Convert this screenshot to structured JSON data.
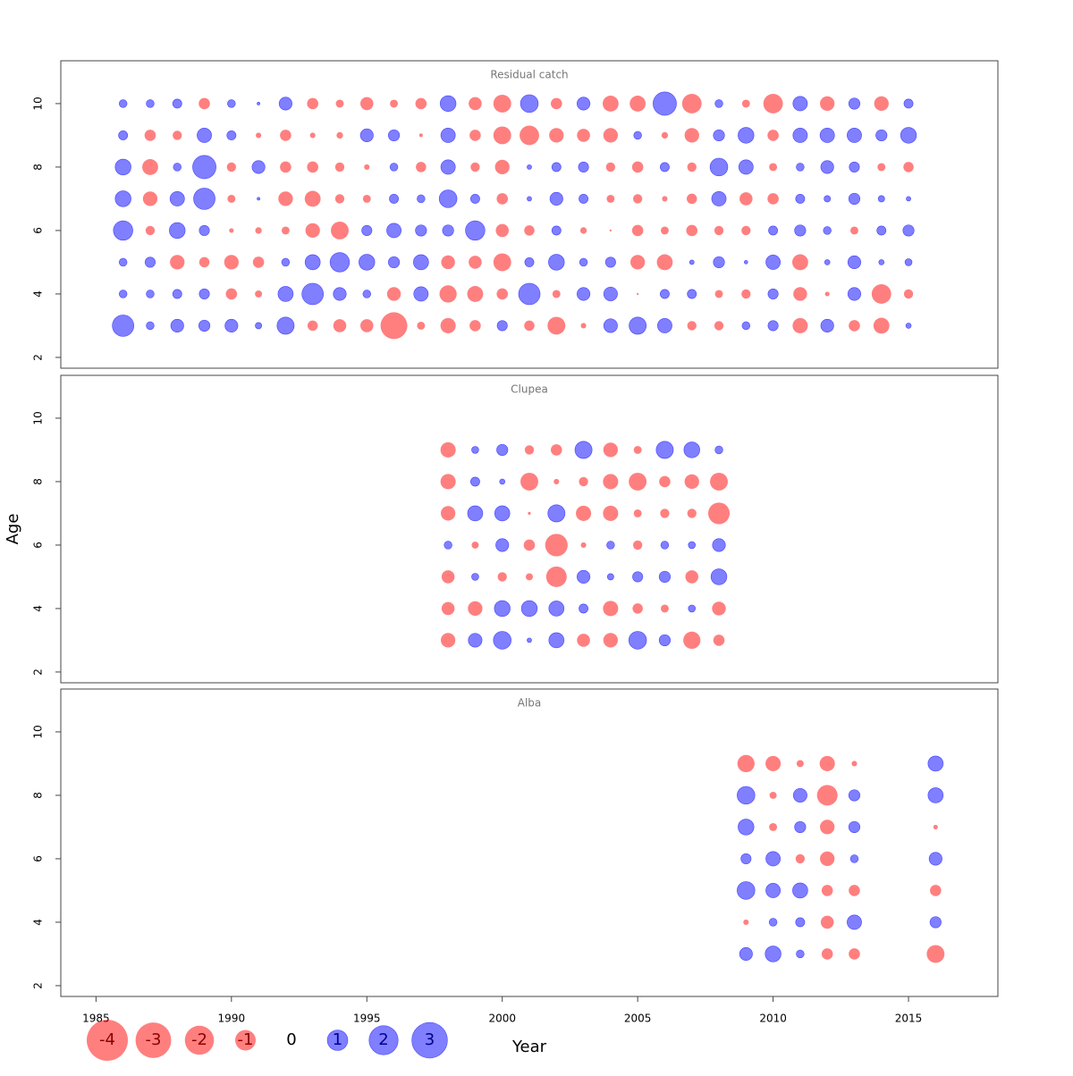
{
  "chart_data": [
    {
      "type": "bubble",
      "title": "Residual catch",
      "x": [
        1986,
        1987,
        1988,
        1989,
        1990,
        1991,
        1992,
        1993,
        1994,
        1995,
        1996,
        1997,
        1998,
        1999,
        2000,
        2001,
        2002,
        2003,
        2004,
        2005,
        2006,
        2007,
        2008,
        2009,
        2010,
        2011,
        2012,
        2013,
        2014,
        2015
      ],
      "y": [
        10,
        9,
        8,
        7,
        6,
        5,
        4,
        3
      ],
      "values": [
        [
          0.15,
          0.15,
          0.2,
          -0.3,
          0.15,
          0.02,
          0.4,
          -0.3,
          -0.15,
          -0.4,
          -0.15,
          -0.3,
          0.6,
          -0.4,
          -0.75,
          0.75,
          -0.3,
          0.4,
          -0.6,
          -0.6,
          1.3,
          -0.9,
          0.15,
          -0.15,
          -0.9,
          0.5,
          -0.5,
          0.3,
          -0.5,
          0.2
        ],
        [
          0.2,
          -0.3,
          -0.2,
          0.5,
          0.2,
          -0.07,
          -0.3,
          -0.07,
          -0.1,
          0.4,
          0.3,
          -0.03,
          0.5,
          -0.3,
          -0.75,
          -0.9,
          -0.5,
          -0.4,
          -0.5,
          0.15,
          -0.1,
          -0.5,
          0.3,
          0.6,
          -0.3,
          0.5,
          0.5,
          0.5,
          0.3,
          0.6
        ],
        [
          0.6,
          -0.6,
          0.15,
          1.3,
          -0.2,
          0.4,
          -0.3,
          -0.3,
          -0.2,
          -0.07,
          0.15,
          -0.25,
          0.5,
          -0.2,
          -0.5,
          0.05,
          0.2,
          0.25,
          -0.2,
          -0.3,
          0.2,
          -0.2,
          0.75,
          0.5,
          -0.15,
          0.15,
          0.4,
          0.25,
          -0.15,
          -0.25
        ],
        [
          0.6,
          -0.5,
          0.5,
          1.1,
          -0.15,
          0.02,
          -0.5,
          -0.6,
          -0.2,
          -0.15,
          0.2,
          0.15,
          0.75,
          0.2,
          -0.3,
          0.05,
          0.4,
          0.2,
          -0.15,
          -0.2,
          -0.07,
          -0.25,
          0.5,
          -0.4,
          -0.3,
          0.2,
          0.1,
          0.3,
          0.1,
          0.05
        ],
        [
          0.9,
          -0.2,
          0.6,
          0.25,
          -0.05,
          -0.1,
          -0.15,
          -0.5,
          -0.75,
          0.25,
          0.5,
          0.3,
          0.3,
          0.9,
          -0.4,
          -0.25,
          0.2,
          -0.1,
          -0.01,
          -0.3,
          -0.15,
          -0.3,
          -0.2,
          -0.2,
          0.2,
          0.3,
          0.15,
          -0.15,
          0.2,
          0.3
        ],
        [
          0.15,
          0.25,
          -0.5,
          -0.25,
          -0.5,
          -0.3,
          0.15,
          0.55,
          0.9,
          0.6,
          0.3,
          0.55,
          -0.45,
          -0.4,
          -0.75,
          0.2,
          0.6,
          0.15,
          0.25,
          -0.5,
          -0.6,
          0.05,
          0.3,
          0.03,
          0.5,
          -0.6,
          0.07,
          0.4,
          0.07,
          0.12
        ],
        [
          0.15,
          0.15,
          0.2,
          0.25,
          -0.3,
          -0.12,
          0.55,
          1.1,
          0.4,
          0.15,
          -0.45,
          0.5,
          -0.7,
          -0.6,
          -0.3,
          1.1,
          -0.15,
          0.4,
          0.45,
          -0.01,
          0.2,
          0.2,
          -0.15,
          -0.2,
          0.25,
          -0.45,
          -0.05,
          0.4,
          -0.9,
          -0.2
        ],
        [
          1.1,
          0.15,
          0.4,
          0.3,
          0.4,
          0.1,
          0.7,
          -0.25,
          -0.4,
          -0.4,
          -1.7,
          -0.15,
          -0.55,
          -0.3,
          0.25,
          -0.25,
          -0.75,
          -0.07,
          0.45,
          0.7,
          0.5,
          -0.2,
          -0.2,
          0.15,
          0.25,
          -0.55,
          0.4,
          -0.3,
          -0.6,
          0.07
        ]
      ],
      "pos_color": "#0000ff",
      "neg_color": "#ff0000",
      "xlim": [
        1983.7,
        2018.3
      ],
      "ylim": [
        1.66,
        11.35
      ],
      "yticks": [
        2,
        4,
        6,
        8,
        10
      ]
    },
    {
      "type": "bubble",
      "title": "Clupea",
      "x": [
        1998,
        1999,
        2000,
        2001,
        2002,
        2003,
        2004,
        2005,
        2006,
        2007,
        2008
      ],
      "y": [
        9,
        8,
        7,
        6,
        5,
        4,
        3
      ],
      "values": [
        [
          -0.55,
          0.12,
          0.3,
          -0.2,
          -0.3,
          0.7,
          -0.5,
          -0.15,
          0.7,
          0.6,
          0.15
        ],
        [
          -0.55,
          0.2,
          0.07,
          -0.75,
          -0.07,
          -0.2,
          -0.55,
          -0.75,
          -0.3,
          -0.5,
          -0.75
        ],
        [
          -0.5,
          0.55,
          0.55,
          -0.02,
          0.7,
          -0.55,
          -0.55,
          -0.15,
          -0.2,
          -0.2,
          -1.1
        ],
        [
          0.15,
          -0.12,
          0.4,
          -0.3,
          -1.2,
          -0.07,
          0.15,
          -0.2,
          0.15,
          0.12,
          0.4
        ],
        [
          -0.4,
          0.12,
          -0.2,
          -0.12,
          -1.0,
          0.4,
          0.1,
          0.25,
          0.3,
          -0.4,
          0.6
        ],
        [
          -0.4,
          -0.5,
          0.6,
          0.6,
          0.55,
          0.2,
          -0.55,
          -0.25,
          -0.15,
          0.12,
          -0.45
        ],
        [
          -0.5,
          0.45,
          0.75,
          0.05,
          0.55,
          -0.4,
          -0.5,
          0.75,
          0.3,
          -0.7,
          -0.3
        ]
      ],
      "pos_color": "#0000ff",
      "neg_color": "#ff0000",
      "xlim": [
        1983.7,
        2018.3
      ],
      "ylim": [
        1.66,
        11.35
      ],
      "yticks": [
        2,
        4,
        6,
        8,
        10
      ]
    },
    {
      "type": "bubble",
      "title": "Alba",
      "x": [
        2009,
        2010,
        2011,
        2012,
        2013,
        2016
      ],
      "y": [
        9,
        8,
        7,
        6,
        5,
        4,
        3
      ],
      "values": [
        [
          -0.7,
          -0.55,
          -0.12,
          -0.55,
          -0.07,
          0.55
        ],
        [
          0.75,
          -0.12,
          0.45,
          -1.0,
          0.3,
          0.55
        ],
        [
          0.6,
          -0.15,
          0.3,
          -0.5,
          0.3,
          -0.05
        ],
        [
          0.25,
          0.5,
          -0.2,
          -0.5,
          0.15,
          0.4
        ],
        [
          0.75,
          0.5,
          0.55,
          -0.3,
          -0.3,
          -0.3
        ],
        [
          -0.07,
          0.15,
          0.2,
          -0.4,
          0.5,
          0.3
        ],
        [
          0.4,
          0.6,
          0.15,
          -0.3,
          -0.3,
          -0.75
        ]
      ],
      "pos_color": "#0000ff",
      "neg_color": "#ff0000",
      "xlim": [
        1983.7,
        2018.3
      ],
      "ylim": [
        1.66,
        11.35
      ],
      "yticks": [
        2,
        4,
        6,
        8,
        10
      ],
      "xticks": [
        1985,
        1990,
        1995,
        2000,
        2005,
        2010,
        2015
      ]
    }
  ],
  "xlabel": "Year",
  "ylabel": "Age",
  "size_legend": [
    -4,
    -3,
    -2,
    -1,
    0,
    1,
    2,
    3
  ]
}
